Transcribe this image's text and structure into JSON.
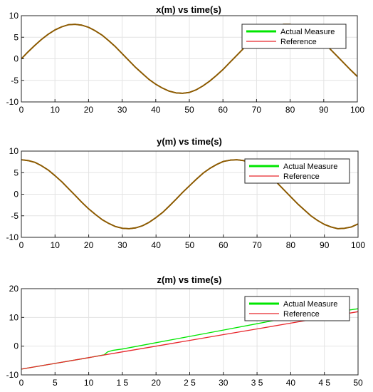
{
  "colors": {
    "actual": "#00e600",
    "reference": "#e8262b",
    "overlap": "#8c5a00",
    "grid": "#e3e3e3"
  },
  "chart_data": [
    {
      "type": "line",
      "title": "x(m) vs time(s)",
      "xlabel": "",
      "ylabel": "",
      "xlim": [
        0,
        100
      ],
      "ylim": [
        -10,
        10
      ],
      "xticks": [
        0,
        10,
        20,
        30,
        40,
        50,
        60,
        70,
        80,
        90,
        100
      ],
      "xtick_labels": [
        "0",
        "10",
        "20",
        "30",
        "40",
        "50",
        "60",
        "70",
        "80",
        "90",
        "100"
      ],
      "yticks": [
        -10,
        -5,
        0,
        5,
        10
      ],
      "ytick_labels": [
        "-10",
        "-5",
        "0",
        "5",
        "10"
      ],
      "grid": true,
      "legend_position": "top-right",
      "series": [
        {
          "name": "Actual Measure",
          "color": "#00e600",
          "x": [
            0,
            2,
            4,
            6,
            8,
            10,
            12,
            14,
            16,
            18,
            20,
            22,
            24,
            26,
            28,
            30,
            32,
            34,
            36,
            38,
            40,
            42,
            44,
            46,
            48,
            50,
            52,
            54,
            56,
            58,
            60,
            62,
            64,
            66,
            68,
            70,
            72,
            74,
            76,
            78,
            80,
            82,
            84,
            86,
            88,
            90,
            92,
            94,
            96,
            98,
            100
          ],
          "y": [
            0,
            1.6,
            3.1,
            4.5,
            5.7,
            6.7,
            7.4,
            7.9,
            8.0,
            7.8,
            7.3,
            6.5,
            5.5,
            4.2,
            2.8,
            1.2,
            -0.4,
            -2.0,
            -3.4,
            -4.8,
            -5.9,
            -6.8,
            -7.5,
            -7.9,
            -8.0,
            -7.8,
            -7.2,
            -6.3,
            -5.2,
            -3.9,
            -2.5,
            -0.9,
            0.7,
            2.3,
            3.7,
            5.0,
            6.1,
            7.0,
            7.6,
            8.0,
            8.0,
            7.7,
            7.1,
            6.2,
            5.0,
            3.7,
            2.2,
            0.6,
            -1.0,
            -2.6,
            -4.1
          ]
        },
        {
          "name": "Reference",
          "color": "#e8262b",
          "x": [
            0,
            2,
            4,
            6,
            8,
            10,
            12,
            14,
            16,
            18,
            20,
            22,
            24,
            26,
            28,
            30,
            32,
            34,
            36,
            38,
            40,
            42,
            44,
            46,
            48,
            50,
            52,
            54,
            56,
            58,
            60,
            62,
            64,
            66,
            68,
            70,
            72,
            74,
            76,
            78,
            80,
            82,
            84,
            86,
            88,
            90,
            92,
            94,
            96,
            98,
            100
          ],
          "y": [
            0,
            1.6,
            3.1,
            4.5,
            5.7,
            6.7,
            7.4,
            7.9,
            8.0,
            7.8,
            7.3,
            6.5,
            5.5,
            4.2,
            2.8,
            1.2,
            -0.4,
            -2.0,
            -3.4,
            -4.8,
            -5.9,
            -6.8,
            -7.5,
            -7.9,
            -8.0,
            -7.8,
            -7.2,
            -6.3,
            -5.2,
            -3.9,
            -2.5,
            -0.9,
            0.7,
            2.3,
            3.7,
            5.0,
            6.1,
            7.0,
            7.6,
            8.0,
            8.0,
            7.7,
            7.1,
            6.2,
            5.0,
            3.7,
            2.2,
            0.6,
            -1.0,
            -2.6,
            -4.1
          ]
        }
      ]
    },
    {
      "type": "line",
      "title": "y(m) vs time(s)",
      "xlabel": "",
      "ylabel": "",
      "xlim": [
        0,
        100
      ],
      "ylim": [
        -10,
        10
      ],
      "xticks": [
        0,
        10,
        20,
        30,
        40,
        50,
        60,
        70,
        80,
        90,
        100
      ],
      "xtick_labels": [
        "0",
        "10",
        "20",
        "30",
        "40",
        "50",
        "60",
        "70",
        "80",
        "90",
        "100"
      ],
      "yticks": [
        -10,
        -5,
        0,
        5,
        10
      ],
      "ytick_labels": [
        "-10",
        "-5",
        "0",
        "5",
        "10"
      ],
      "grid": true,
      "legend_position": "top-right",
      "series": [
        {
          "name": "Actual Measure",
          "color": "#00e600",
          "x": [
            0,
            2,
            4,
            6,
            8,
            10,
            12,
            14,
            16,
            18,
            20,
            22,
            24,
            26,
            28,
            30,
            32,
            34,
            36,
            38,
            40,
            42,
            44,
            46,
            48,
            50,
            52,
            54,
            56,
            58,
            60,
            62,
            64,
            66,
            68,
            70,
            72,
            74,
            76,
            78,
            80,
            82,
            84,
            86,
            88,
            90,
            92,
            94,
            96,
            98,
            100
          ],
          "y": [
            8.0,
            7.8,
            7.4,
            6.6,
            5.6,
            4.3,
            2.9,
            1.3,
            -0.3,
            -1.9,
            -3.4,
            -4.7,
            -5.9,
            -6.8,
            -7.5,
            -7.9,
            -8.0,
            -7.8,
            -7.3,
            -6.5,
            -5.4,
            -4.2,
            -2.7,
            -1.1,
            0.5,
            2.0,
            3.5,
            4.9,
            6.0,
            6.9,
            7.6,
            7.9,
            8.0,
            7.8,
            7.2,
            6.4,
            5.3,
            4.0,
            2.6,
            1.0,
            -0.6,
            -2.2,
            -3.6,
            -5.0,
            -6.1,
            -7.0,
            -7.6,
            -8.0,
            -7.9,
            -7.6,
            -6.9
          ]
        },
        {
          "name": "Reference",
          "color": "#e8262b",
          "x": [
            0,
            2,
            4,
            6,
            8,
            10,
            12,
            14,
            16,
            18,
            20,
            22,
            24,
            26,
            28,
            30,
            32,
            34,
            36,
            38,
            40,
            42,
            44,
            46,
            48,
            50,
            52,
            54,
            56,
            58,
            60,
            62,
            64,
            66,
            68,
            70,
            72,
            74,
            76,
            78,
            80,
            82,
            84,
            86,
            88,
            90,
            92,
            94,
            96,
            98,
            100
          ],
          "y": [
            8.0,
            7.8,
            7.4,
            6.6,
            5.6,
            4.3,
            2.9,
            1.3,
            -0.3,
            -1.9,
            -3.4,
            -4.7,
            -5.9,
            -6.8,
            -7.5,
            -7.9,
            -8.0,
            -7.8,
            -7.3,
            -6.5,
            -5.4,
            -4.2,
            -2.7,
            -1.1,
            0.5,
            2.0,
            3.5,
            4.9,
            6.0,
            6.9,
            7.6,
            7.9,
            8.0,
            7.8,
            7.2,
            6.4,
            5.3,
            4.0,
            2.6,
            1.0,
            -0.6,
            -2.2,
            -3.6,
            -5.0,
            -6.1,
            -7.0,
            -7.6,
            -8.0,
            -7.9,
            -7.6,
            -6.9
          ]
        }
      ]
    },
    {
      "type": "line",
      "title": "z(m) vs time(s)",
      "xlabel": "",
      "ylabel": "",
      "xlim": [
        0,
        50
      ],
      "ylim": [
        -10,
        20
      ],
      "xticks": [
        0,
        5,
        10,
        15,
        20,
        25,
        30,
        35,
        40,
        45,
        50
      ],
      "xtick_labels": [
        "0",
        "5",
        "10",
        "1 5",
        "20",
        "2 5",
        "30",
        "3 5",
        "40",
        "4 5",
        "50"
      ],
      "yticks": [
        -10,
        0,
        10,
        20
      ],
      "ytick_labels": [
        "-10",
        "0",
        "10",
        "20"
      ],
      "grid": true,
      "legend_position": "top-right",
      "series": [
        {
          "name": "Actual Measure",
          "color": "#00e600",
          "x": [
            0,
            5,
            10,
            12.3,
            12.8,
            13.5,
            15,
            20,
            25,
            30,
            35,
            40,
            45,
            50
          ],
          "y": [
            -8.0,
            -6.0,
            -4.0,
            -3.0,
            -2.0,
            -1.5,
            -1.0,
            1.2,
            3.4,
            5.6,
            7.8,
            10.0,
            11.3,
            13.0
          ]
        },
        {
          "name": "Reference",
          "color": "#e8262b",
          "x": [
            0,
            5,
            10,
            15,
            20,
            25,
            30,
            35,
            40,
            45,
            50
          ],
          "y": [
            -8.0,
            -6.0,
            -4.0,
            -2.0,
            0.0,
            2.0,
            4.0,
            6.0,
            8.0,
            10.0,
            12.0
          ]
        }
      ]
    }
  ]
}
